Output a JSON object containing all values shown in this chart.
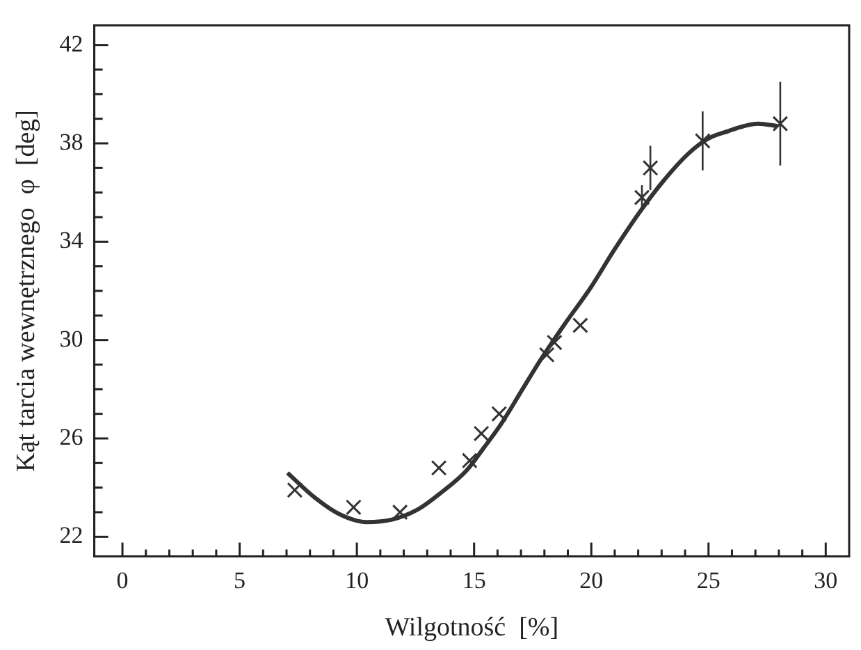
{
  "chart_data": {
    "type": "scatter",
    "xlabel": "Wilgotność  [%]",
    "ylabel": "Kąt tarcia wewnętrznego  φ  [deg]",
    "xlim": [
      -1.2,
      31
    ],
    "ylim": [
      21.2,
      42.8
    ],
    "xticks": [
      0,
      {
        "value": 1,
        "label": null
      },
      {
        "value": 2,
        "label": null
      },
      {
        "value": 3,
        "label": null
      },
      {
        "value": 4,
        "label": null
      },
      5,
      {
        "value": 6,
        "label": null
      },
      {
        "value": 7,
        "label": null
      },
      {
        "value": 8,
        "label": null
      },
      {
        "value": 9,
        "label": null
      },
      10,
      {
        "value": 11,
        "label": null
      },
      {
        "value": 12,
        "label": null
      },
      {
        "value": 13,
        "label": null
      },
      {
        "value": 14,
        "label": null
      },
      15,
      {
        "value": 16,
        "label": null
      },
      {
        "value": 17,
        "label": null
      },
      {
        "value": 18,
        "label": null
      },
      {
        "value": 19,
        "label": null
      },
      20,
      {
        "value": 21,
        "label": null
      },
      {
        "value": 22,
        "label": null
      },
      {
        "value": 23,
        "label": null
      },
      {
        "value": 24,
        "label": null
      },
      25,
      {
        "value": 26,
        "label": null
      },
      {
        "value": 27,
        "label": null
      },
      {
        "value": 28,
        "label": null
      },
      {
        "value": 29,
        "label": null
      },
      30
    ],
    "yticks": [
      22,
      {
        "value": 23,
        "label": null
      },
      {
        "value": 24,
        "label": null
      },
      {
        "value": 25,
        "label": null
      },
      26,
      {
        "value": 27,
        "label": null
      },
      {
        "value": 28,
        "label": null
      },
      {
        "value": 29,
        "label": null
      },
      30,
      {
        "value": 31,
        "label": null
      },
      {
        "value": 32,
        "label": null
      },
      {
        "value": 33,
        "label": null
      },
      34,
      {
        "value": 35,
        "label": null
      },
      {
        "value": 36,
        "label": null
      },
      {
        "value": 37,
        "label": null
      },
      38,
      {
        "value": 39,
        "label": null
      },
      {
        "value": 40,
        "label": null
      },
      {
        "value": 41,
        "label": null
      },
      42
    ],
    "grid": false,
    "legend": false,
    "series": [
      {
        "color": "#333333",
        "marker": "cross",
        "x": [
          7.35,
          9.86,
          11.84,
          13.5,
          14.81,
          15.31,
          16.07,
          18.1,
          18.43,
          19.53,
          22.16,
          22.52,
          24.75,
          28.06
        ],
        "values": [
          23.9,
          23.2,
          23.0,
          24.8,
          25.1,
          26.2,
          27.0,
          29.4,
          29.9,
          30.6,
          35.8,
          37.0,
          38.1,
          38.8
        ],
        "errors": [
          null,
          null,
          null,
          null,
          null,
          null,
          null,
          null,
          null,
          null,
          0.5,
          0.9,
          1.2,
          1.7
        ]
      },
      {
        "type": "line",
        "color": "#333333",
        "marker": "none",
        "line_style": "solid",
        "x": [
          7.04,
          8.2,
          9.3,
          10.41,
          11.5,
          12.58,
          13.6,
          14.68,
          15.4,
          16.16,
          17,
          17.84,
          18.9,
          19.95,
          21,
          22.06,
          23.1,
          24.16,
          25.0,
          25.85,
          26.5,
          27.11,
          27.95
        ],
        "values": [
          24.6,
          23.6,
          22.9,
          22.6,
          22.7,
          23.1,
          23.8,
          24.7,
          25.6,
          26.6,
          27.9,
          29.2,
          30.7,
          32.1,
          33.7,
          35.2,
          36.5,
          37.6,
          38.2,
          38.5,
          38.7,
          38.8,
          38.7
        ]
      }
    ]
  }
}
